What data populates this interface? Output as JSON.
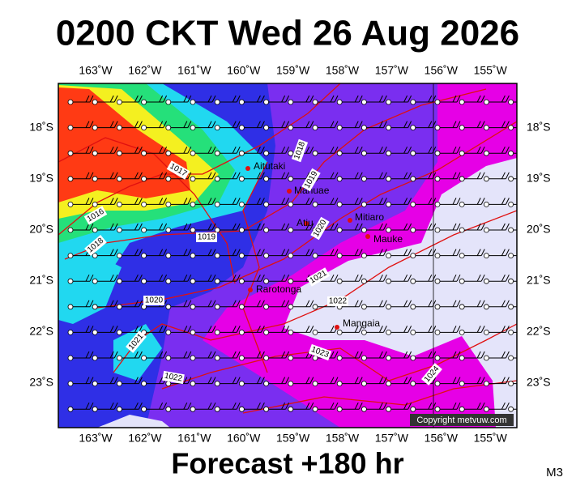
{
  "header": {
    "title": "0200 CKT Wed 26 Aug 2026"
  },
  "map": {
    "longitude_labels": [
      "163˚W",
      "162˚W",
      "161˚W",
      "160˚W",
      "159˚W",
      "158˚W",
      "157˚W",
      "156˚W",
      "155˚W"
    ],
    "latitude_labels": [
      "18˚S",
      "19˚S",
      "20˚S",
      "21˚S",
      "22˚S",
      "23˚S"
    ],
    "places": [
      "Aitutaki",
      "Manuae",
      "Atiu",
      "Mitiaro",
      "Mauke",
      "Rarotonga",
      "Mangaia"
    ],
    "isobar_labels": [
      "1017",
      "1018",
      "1019",
      "1016",
      "1018",
      "1019",
      "1020",
      "1021",
      "1022",
      "1020",
      "1021",
      "1022",
      "1023",
      "1024"
    ],
    "copyright": "Copyright metvuw.com"
  },
  "footer": {
    "forecast": "Forecast +180 hr",
    "model": "M3"
  }
}
